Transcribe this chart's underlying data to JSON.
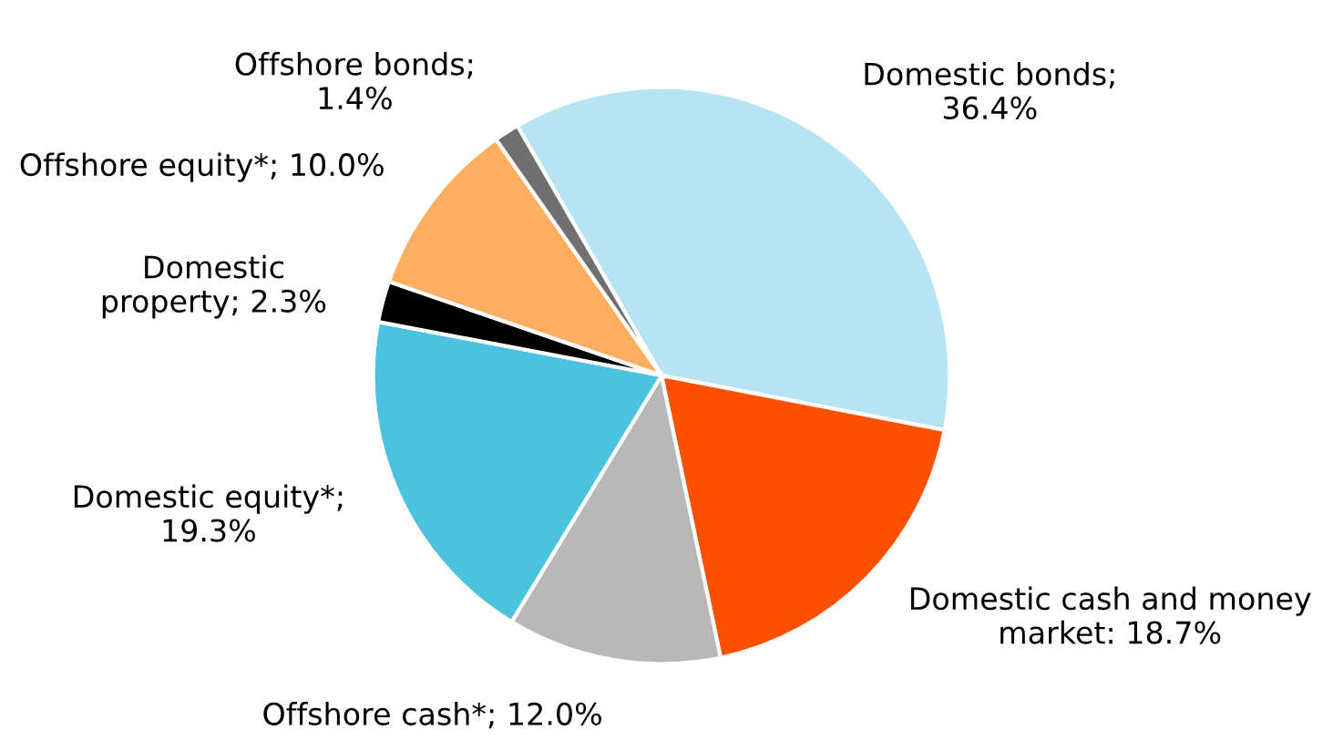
{
  "chart_data": {
    "type": "pie",
    "categories": [
      "Domestic bonds;\n36.4%",
      "Domestic cash and money\nmarket: 18.7%",
      "Offshore cash*; 12.0%",
      "Domestic equity*;\n19.3%",
      "Domestic\nproperty; 2.3%",
      "Offshore equity*; 10.0%",
      "Offshore bonds;\n1.4%"
    ],
    "values": [
      36.4,
      18.7,
      12.0,
      19.3,
      2.3,
      10.0,
      1.4
    ],
    "colors": [
      "#b7e4f2",
      "#ff5000",
      "#b8b8b8",
      "#4bc3df",
      "#000000",
      "#ffad60",
      "#707070"
    ]
  }
}
